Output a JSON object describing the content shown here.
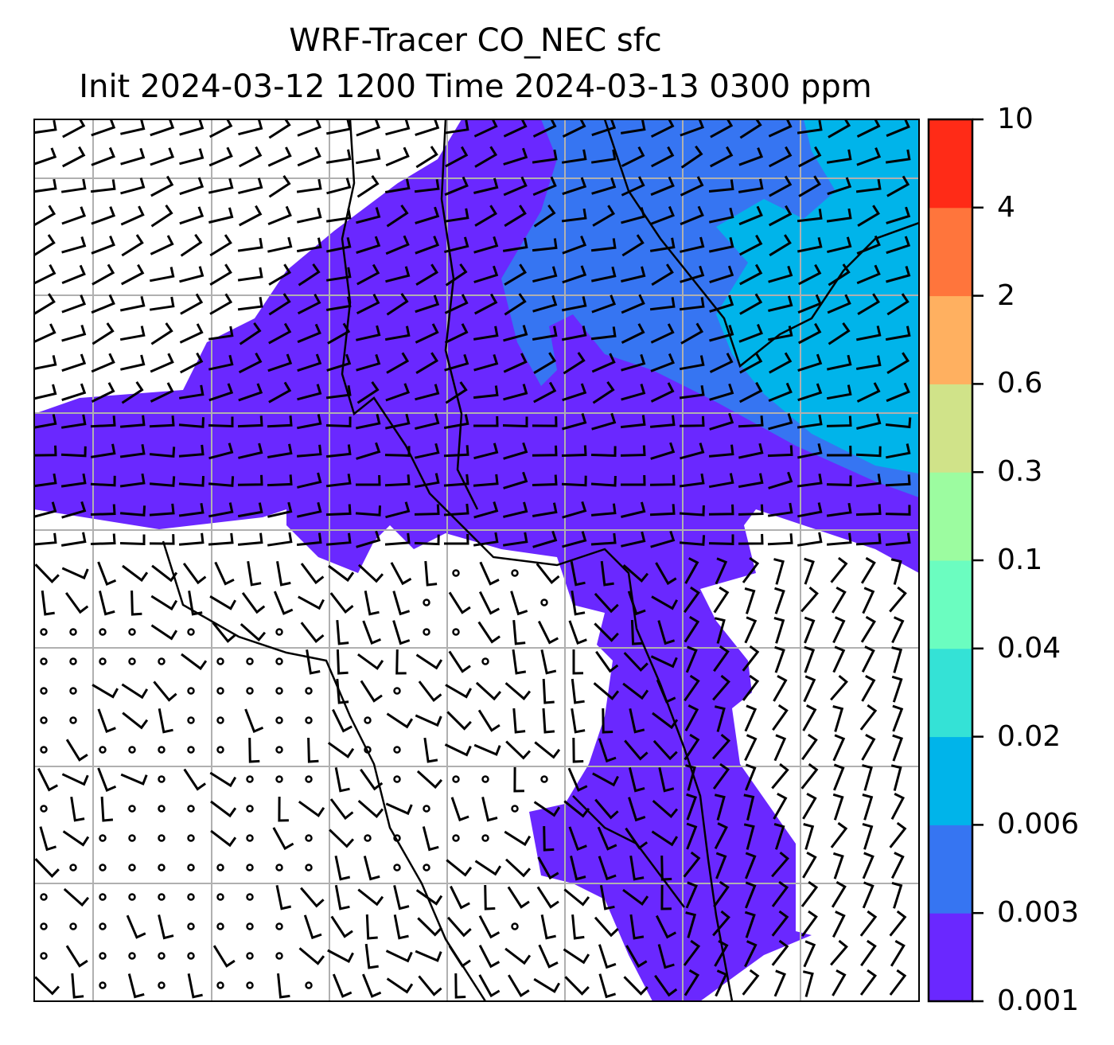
{
  "title": {
    "line1": "WRF-Tracer CO_NEC sfc",
    "line2": "Init 2024-03-12 1200 Time 2024-03-13 0300 ppm"
  },
  "chart_data": {
    "type": "heatmap",
    "title": "WRF-Tracer CO_NEC sfc",
    "subtitle": "Init 2024-03-12 1200 Time 2024-03-13 0300 ppm",
    "units": "ppm",
    "variable": "CO_NEC",
    "level": "sfc",
    "colorbar": {
      "orientation": "vertical",
      "placement": "right",
      "levels": [
        "0.001",
        "0.003",
        "0.006",
        "0.02",
        "0.04",
        "0.1",
        "0.3",
        "0.6",
        "2",
        "4",
        "10"
      ],
      "colors": [
        "#6a28ff",
        "#3675f2",
        "#00b4ea",
        "#34e2d6",
        "#6bfdc0",
        "#9cfca0",
        "#d0e389",
        "#ffb060",
        "#ff753c",
        "#ff2b17"
      ]
    },
    "overlays": [
      "wind barbs",
      "coastlines",
      "lat/lon gridlines"
    ],
    "grid": true
  }
}
